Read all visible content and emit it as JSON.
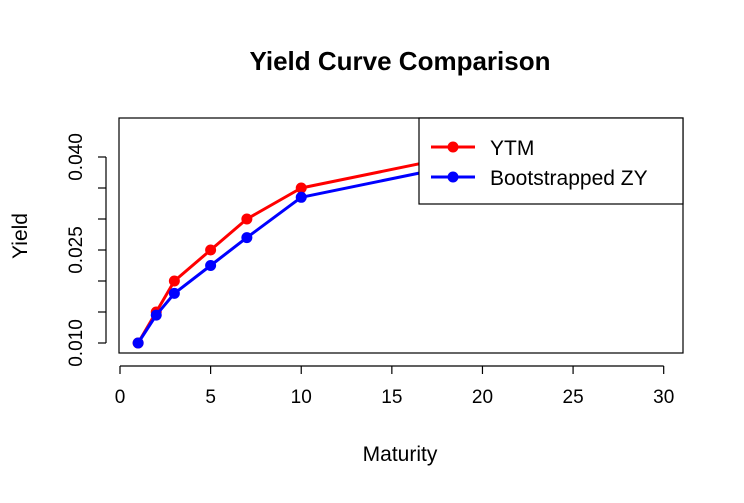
{
  "chart_data": {
    "type": "line",
    "title": "Yield Curve Comparison",
    "xlabel": "Maturity",
    "ylabel": "Yield",
    "xlim": [
      0,
      30
    ],
    "ylim": [
      0.007,
      0.0435
    ],
    "x_ticks": [
      0,
      5,
      10,
      15,
      20,
      25,
      30
    ],
    "y_ticks": [
      0.01,
      0.015,
      0.02,
      0.025,
      0.03,
      0.035,
      0.04
    ],
    "y_tick_labels": [
      "0.010",
      "0.025",
      "0.040"
    ],
    "grid": false,
    "legend_position": "top-right",
    "series": [
      {
        "name": "YTM",
        "color": "#ff0000",
        "x": [
          1,
          2,
          3,
          5,
          7,
          10,
          20,
          30
        ],
        "values": [
          0.01,
          0.015,
          0.02,
          0.025,
          0.03,
          0.035,
          0.041,
          0.0425
        ]
      },
      {
        "name": "Bootstrapped ZY",
        "color": "#0000ff",
        "x": [
          1,
          2,
          3,
          5,
          7,
          10,
          20,
          30
        ],
        "values": [
          0.01,
          0.0145,
          0.018,
          0.0225,
          0.027,
          0.0335,
          0.0395,
          0.0415
        ]
      }
    ]
  }
}
